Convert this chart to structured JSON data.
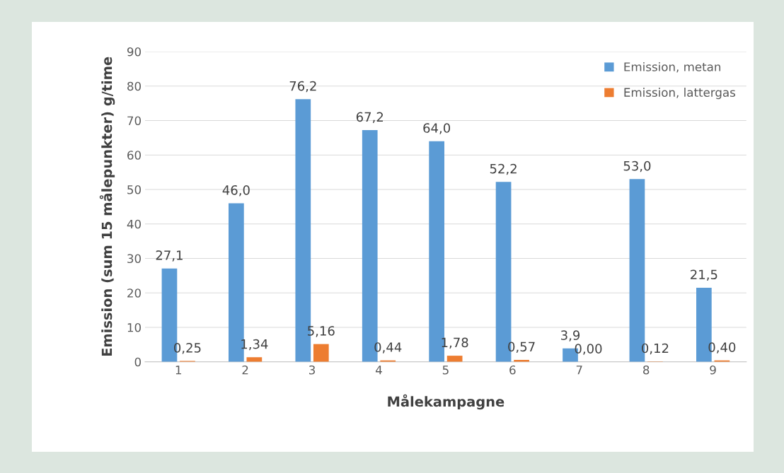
{
  "chart_data": {
    "type": "bar",
    "xlabel": "Målekampagne",
    "ylabel": "Emission (sum 15 målepunkter) g/time",
    "categories": [
      "1",
      "2",
      "3",
      "4",
      "5",
      "6",
      "7",
      "8",
      "9"
    ],
    "series": [
      {
        "name": "Emission, metan",
        "color": "#5b9bd5",
        "values": [
          27.1,
          46.0,
          76.2,
          67.2,
          64.0,
          52.2,
          3.9,
          53.0,
          21.5
        ],
        "value_labels": [
          "27,1",
          "46,0",
          "76,2",
          "67,2",
          "64,0",
          "52,2",
          "3,9",
          "53,0",
          "21,5"
        ]
      },
      {
        "name": "Emission, lattergas",
        "color": "#ed7d31",
        "values": [
          0.25,
          1.34,
          5.16,
          0.44,
          1.78,
          0.57,
          0.0,
          0.12,
          0.4
        ],
        "value_labels": [
          "0,25",
          "1,34",
          "5,16",
          "0,44",
          "1,78",
          "0,57",
          "0,00",
          "0,12",
          "0,40"
        ]
      }
    ],
    "ylim": [
      0,
      90
    ],
    "yticks": [
      0,
      10,
      20,
      30,
      40,
      50,
      60,
      70,
      80,
      90
    ],
    "grid": "y",
    "legend": "top right"
  }
}
